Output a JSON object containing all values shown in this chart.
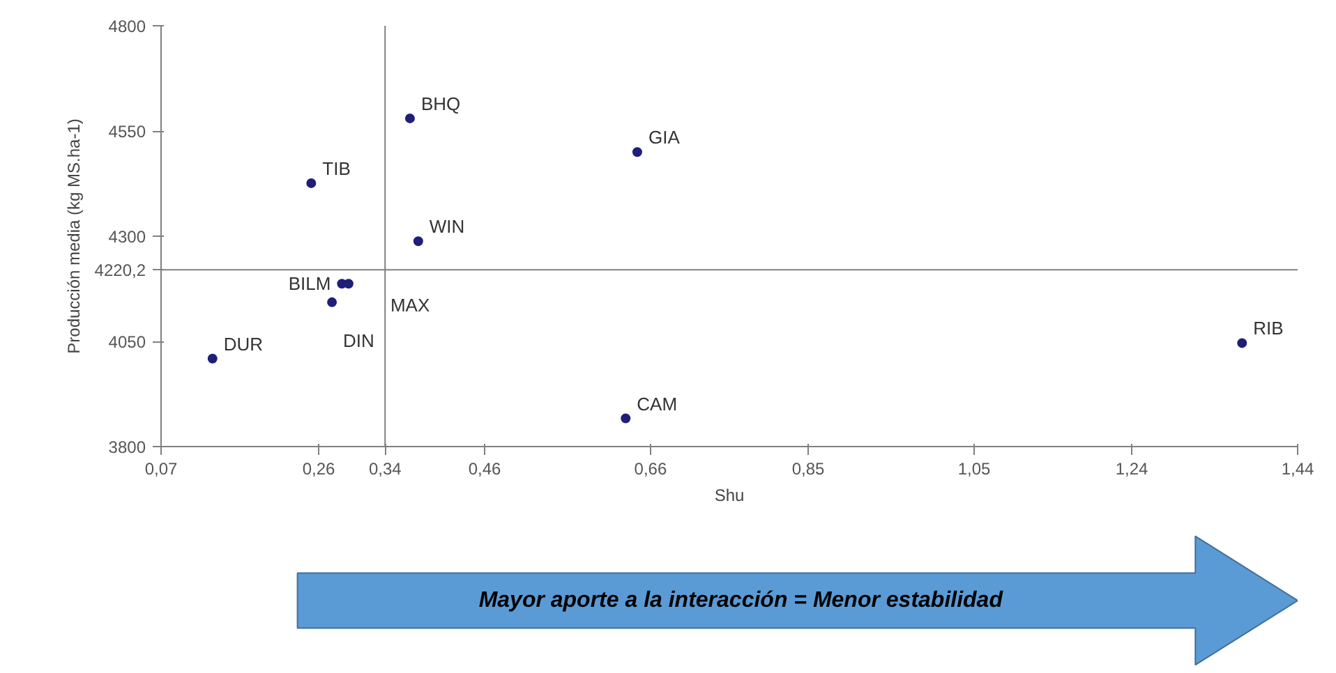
{
  "chart_data": {
    "type": "scatter",
    "xlabel": "Shu",
    "ylabel": "Producción media (kg MS.ha-1)",
    "x": [
      0.37,
      0.644,
      0.251,
      0.38,
      0.288,
      0.296,
      0.276,
      0.132,
      0.63,
      1.373
    ],
    "values": [
      4580,
      4500,
      4426,
      4288,
      4187,
      4187,
      4143,
      4009,
      3867,
      4046
    ],
    "color": "#1f1f7a",
    "marker": "circle",
    "xlim": [
      0.07,
      1.44
    ],
    "ylim": [
      3800,
      4800
    ],
    "xticks": [
      {
        "value": 0.07,
        "label": "0,07"
      },
      {
        "value": 0.26,
        "label": "0,26"
      },
      {
        "value": 0.46,
        "label": "0,46"
      },
      {
        "value": 0.66,
        "label": "0,66"
      },
      {
        "value": 0.85,
        "label": "0,85"
      },
      {
        "value": 1.05,
        "label": "1,05"
      },
      {
        "value": 1.24,
        "label": "1,24"
      },
      {
        "value": 1.44,
        "label": "1,44"
      }
    ],
    "yticks": [
      3800,
      4050,
      4300,
      4550,
      4800
    ],
    "ref_lines": [
      {
        "axis": "y",
        "value": 4220.2,
        "label": "4220,2",
        "color": "#808080"
      },
      {
        "axis": "x",
        "value": 0.34,
        "label": "0,34",
        "color": "#808080"
      }
    ],
    "annotations": [
      {
        "text": "BHQ",
        "x": 0.37,
        "y": 4580
      },
      {
        "text": "GIA",
        "x": 0.644,
        "y": 4500
      },
      {
        "text": "TIB",
        "x": 0.251,
        "y": 4426
      },
      {
        "text": "WIN",
        "x": 0.38,
        "y": 4288
      },
      {
        "text": "BILM",
        "x": 0.288,
        "y": 4187
      },
      {
        "text": "MAX",
        "x": 0.296,
        "y": 4187
      },
      {
        "text": "DIN",
        "x": 0.276,
        "y": 4143
      },
      {
        "text": "DUR",
        "x": 0.132,
        "y": 4009
      },
      {
        "text": "CAM",
        "x": 0.63,
        "y": 3867
      },
      {
        "text": "RIB",
        "x": 1.373,
        "y": 4046
      },
      "Mayor aporte a la interacción = Menor estabilidad"
    ],
    "grid": false
  }
}
